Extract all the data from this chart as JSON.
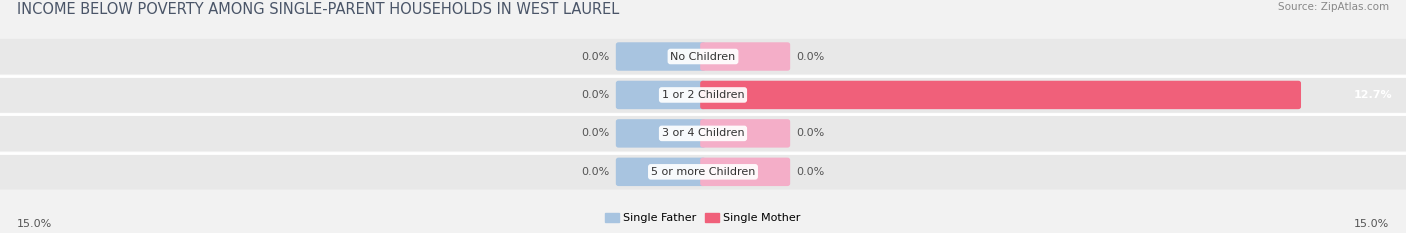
{
  "title": "INCOME BELOW POVERTY AMONG SINGLE-PARENT HOUSEHOLDS IN WEST LAUREL",
  "source": "Source: ZipAtlas.com",
  "categories": [
    "No Children",
    "1 or 2 Children",
    "3 or 4 Children",
    "5 or more Children"
  ],
  "single_father_values": [
    0.0,
    0.0,
    0.0,
    0.0
  ],
  "single_mother_values": [
    0.0,
    12.7,
    0.0,
    0.0
  ],
  "father_color": "#a8c4e0",
  "mother_color_dim": "#f4aec8",
  "mother_color_bright": "#f0607a",
  "axis_limit": 15.0,
  "father_stub": 1.8,
  "mother_stub": 1.8,
  "background_color": "#f2f2f2",
  "bar_row_color": "#e8e8e8",
  "row_sep_color": "#ffffff",
  "title_color": "#4a5568",
  "source_color": "#888888",
  "label_color": "#555555",
  "val_color": "#555555",
  "title_fontsize": 10.5,
  "label_fontsize": 8,
  "tick_fontsize": 8,
  "source_fontsize": 7.5,
  "legend_fontsize": 8
}
